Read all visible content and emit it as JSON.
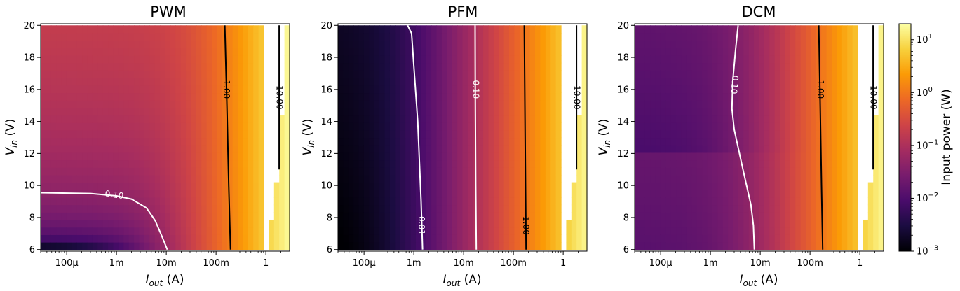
{
  "chart_data": [
    {
      "type": "heatmap",
      "title": "PWM",
      "xlabel": "I",
      "xlabel_sub": "out",
      "xlabel_unit": " (A)",
      "ylabel": "V",
      "ylabel_sub": "in",
      "ylabel_unit": " (V)",
      "xscale": "log",
      "xlim": [
        3e-05,
        3
      ],
      "ylim": [
        5.9,
        20.1
      ],
      "xticks": [
        {
          "value": 0.0001,
          "label": "100μ"
        },
        {
          "value": 0.001,
          "label": "1m"
        },
        {
          "value": 0.01,
          "label": "10m"
        },
        {
          "value": 0.1,
          "label": "100m"
        },
        {
          "value": 1,
          "label": "1"
        }
      ],
      "yticks": [
        6,
        8,
        10,
        12,
        14,
        16,
        18,
        20
      ],
      "contours": [
        {
          "level": 0.1,
          "label": "0.10",
          "color": "white",
          "x": [
            3e-05,
            0.0003,
            0.001,
            0.002,
            0.004,
            0.006,
            0.008,
            0.0105
          ],
          "y": [
            9.55,
            9.5,
            9.35,
            9.15,
            8.6,
            7.8,
            6.9,
            6.0
          ]
        },
        {
          "level": 1,
          "label": "1.00",
          "color": "black",
          "x": [
            0.15,
            0.165,
            0.18,
            0.195
          ],
          "y": [
            20.0,
            15.0,
            10.0,
            6.0
          ]
        },
        {
          "level": 10,
          "label": "10.00",
          "color": "black",
          "x": [
            1.85,
            1.85
          ],
          "y": [
            20.0,
            11.0
          ]
        }
      ],
      "contour_labels": [
        {
          "text": "0.10",
          "x": 0.0009,
          "y": 9.4,
          "angle": 8
        },
        {
          "text": "1.00",
          "x": 0.16,
          "y": 16.0,
          "angle": 90
        },
        {
          "text": "10.00",
          "x": 1.85,
          "y": 15.5,
          "angle": 90
        }
      ]
    },
    {
      "type": "heatmap",
      "title": "PFM",
      "xlabel": "I",
      "xlabel_sub": "out",
      "xlabel_unit": " (A)",
      "ylabel": "V",
      "ylabel_sub": "in",
      "ylabel_unit": " (V)",
      "xscale": "log",
      "xlim": [
        3e-05,
        3
      ],
      "ylim": [
        5.9,
        20.1
      ],
      "xticks": [
        {
          "value": 0.0001,
          "label": "100μ"
        },
        {
          "value": 0.001,
          "label": "1m"
        },
        {
          "value": 0.01,
          "label": "10m"
        },
        {
          "value": 0.1,
          "label": "100m"
        },
        {
          "value": 1,
          "label": "1"
        }
      ],
      "yticks": [
        6,
        8,
        10,
        12,
        14,
        16,
        18,
        20
      ],
      "contours": [
        {
          "level": 0.01,
          "label": "0.01",
          "color": "white",
          "x": [
            0.00075,
            0.0009,
            0.0012,
            0.0014,
            0.0015
          ],
          "y": [
            20.0,
            19.5,
            14.0,
            9.0,
            6.0
          ]
        },
        {
          "level": 0.1,
          "label": "0.10",
          "color": "white",
          "x": [
            0.017,
            0.0172,
            0.0175,
            0.018
          ],
          "y": [
            20.0,
            15.0,
            10.0,
            6.0
          ]
        },
        {
          "level": 1,
          "label": "1.00",
          "color": "black",
          "x": [
            0.165,
            0.17,
            0.175,
            0.18
          ],
          "y": [
            20.0,
            15.0,
            10.0,
            6.0
          ]
        },
        {
          "level": 10,
          "label": "10.00",
          "color": "black",
          "x": [
            1.85,
            1.85
          ],
          "y": [
            20.0,
            11.0
          ]
        }
      ],
      "contour_labels": [
        {
          "text": "0.01",
          "x": 0.0014,
          "y": 7.5,
          "angle": 90
        },
        {
          "text": "0.10",
          "x": 0.0172,
          "y": 16.0,
          "angle": 90
        },
        {
          "text": "1.00",
          "x": 0.175,
          "y": 7.5,
          "angle": 90
        },
        {
          "text": "10.00",
          "x": 1.85,
          "y": 15.5,
          "angle": 90
        }
      ]
    },
    {
      "type": "heatmap",
      "title": "DCM",
      "xlabel": "I",
      "xlabel_sub": "out",
      "xlabel_unit": " (A)",
      "ylabel": "V",
      "ylabel_sub": "in",
      "ylabel_unit": " (V)",
      "xscale": "log",
      "xlim": [
        3e-05,
        3
      ],
      "ylim": [
        5.9,
        20.1
      ],
      "xticks": [
        {
          "value": 0.0001,
          "label": "100μ"
        },
        {
          "value": 0.001,
          "label": "1m"
        },
        {
          "value": 0.01,
          "label": "10m"
        },
        {
          "value": 0.1,
          "label": "100m"
        },
        {
          "value": 1,
          "label": "1"
        }
      ],
      "yticks": [
        6,
        8,
        10,
        12,
        14,
        16,
        18,
        20
      ],
      "contours": [
        {
          "level": 0.1,
          "label": "0.10",
          "color": "white",
          "x": [
            0.0036,
            0.0032,
            0.0028,
            0.0027,
            0.003,
            0.0045,
            0.0065,
            0.0073,
            0.0076
          ],
          "y": [
            20.0,
            18.5,
            16.5,
            14.8,
            13.5,
            11.0,
            8.8,
            7.5,
            6.0
          ]
        },
        {
          "level": 1,
          "label": "1.00",
          "color": "black",
          "x": [
            0.15,
            0.16,
            0.17,
            0.18
          ],
          "y": [
            20.0,
            15.0,
            10.0,
            6.0
          ]
        },
        {
          "level": 10,
          "label": "10.00",
          "color": "black",
          "x": [
            1.85,
            1.85
          ],
          "y": [
            20.0,
            11.0
          ]
        }
      ],
      "contour_labels": [
        {
          "text": "0.10",
          "x": 0.003,
          "y": 16.3,
          "angle": 95
        },
        {
          "text": "1.00",
          "x": 0.16,
          "y": 16.0,
          "angle": 90
        },
        {
          "text": "10.00",
          "x": 1.85,
          "y": 15.5,
          "angle": 90
        }
      ]
    }
  ],
  "colorbar": {
    "label": "Input power (W)",
    "scale": "log",
    "range": [
      0.001,
      20
    ],
    "colormap": "inferno",
    "ticks": [
      {
        "value": 0.001,
        "base": "10",
        "exp": "−3"
      },
      {
        "value": 0.01,
        "base": "10",
        "exp": "−2"
      },
      {
        "value": 0.1,
        "base": "10",
        "exp": "−1"
      },
      {
        "value": 1,
        "base": "10",
        "exp": "0"
      },
      {
        "value": 10,
        "base": "10",
        "exp": "1"
      }
    ]
  },
  "colors": {
    "inferno": [
      "#000004",
      "#1b0c41",
      "#4a0c6b",
      "#781c6d",
      "#a52c60",
      "#cf4446",
      "#ed6925",
      "#fb9b06",
      "#f7d13d",
      "#fcffa4"
    ]
  }
}
